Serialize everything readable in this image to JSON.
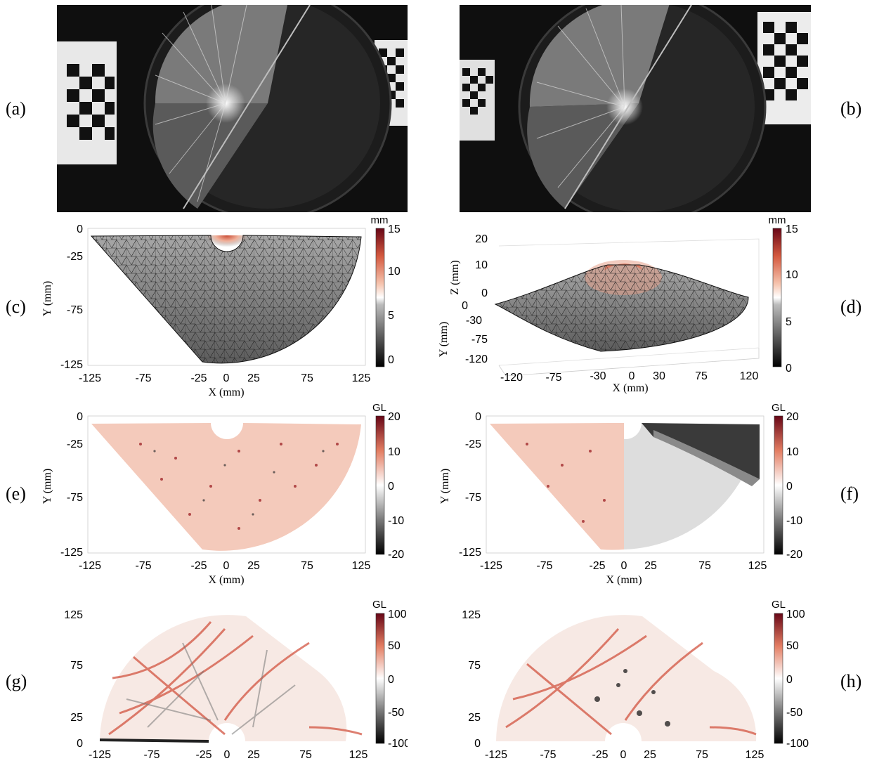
{
  "panel_labels": [
    "(a)",
    "(b)",
    "(c)",
    "(d)",
    "(e)",
    "(f)",
    "(g)",
    "(h)"
  ],
  "colors": {
    "dark": "#1a1a1a",
    "mid": "#ffffff",
    "red": "#8b0a1a",
    "orange": "#e8826a"
  },
  "photos": [
    {
      "id": "a",
      "description_icons": [
        "glass-plate-icon",
        "calibration-target-icon"
      ]
    },
    {
      "id": "b",
      "description_icons": [
        "glass-plate-icon",
        "calibration-target-icon"
      ]
    }
  ],
  "chart_data": [
    {
      "id": "c",
      "type": "heatmap",
      "xlabel": "X (mm)",
      "ylabel": "Y (mm)",
      "xticks": [
        "-125",
        "-75",
        "-25",
        "0",
        "25",
        "75",
        "125"
      ],
      "yticks": [
        "0",
        "-25",
        "-75",
        "-125"
      ],
      "colorbar": {
        "unit": "mm",
        "ticks": [
          "15",
          "10",
          "5",
          "0"
        ],
        "range": [
          -1,
          15
        ]
      }
    },
    {
      "id": "d",
      "type": "heatmap",
      "xlabel": "X (mm)",
      "ylabel": "Y (mm)",
      "zlabel": "Z (mm)",
      "xticks": [
        "-120",
        "-75",
        "-30",
        "0",
        "30",
        "75",
        "120"
      ],
      "yticks": [
        "0",
        "-30",
        "-75",
        "-120"
      ],
      "zticks": [
        "20",
        "10",
        "0"
      ],
      "colorbar": {
        "unit": "mm",
        "ticks": [
          "15",
          "10",
          "5",
          "0"
        ],
        "range": [
          -1,
          15
        ]
      }
    },
    {
      "id": "e",
      "type": "heatmap",
      "xlabel": "X (mm)",
      "ylabel": "Y (mm)",
      "xticks": [
        "-125",
        "-75",
        "-25",
        "0",
        "25",
        "75",
        "125"
      ],
      "yticks": [
        "0",
        "-25",
        "-75",
        "-125"
      ],
      "colorbar": {
        "unit": "GL",
        "ticks": [
          "20",
          "10",
          "0",
          "-10",
          "-20"
        ],
        "range": [
          -20,
          20
        ]
      }
    },
    {
      "id": "f",
      "type": "heatmap",
      "xlabel": "X (mm)",
      "ylabel": "Y (mm)",
      "xticks": [
        "-125",
        "-75",
        "-25",
        "0",
        "25",
        "75",
        "125"
      ],
      "yticks": [
        "0",
        "-25",
        "-75",
        "-125"
      ],
      "colorbar": {
        "unit": "GL",
        "ticks": [
          "20",
          "10",
          "0",
          "-10",
          "-20"
        ],
        "range": [
          -20,
          20
        ]
      }
    },
    {
      "id": "g",
      "type": "heatmap",
      "xticks": [
        "-125",
        "-75",
        "-25",
        "0",
        "25",
        "75",
        "125"
      ],
      "yticks": [
        "125",
        "75",
        "25",
        "0"
      ],
      "colorbar": {
        "unit": "GL",
        "ticks": [
          "100",
          "50",
          "0",
          "-50",
          "-100"
        ],
        "range": [
          -100,
          100
        ]
      }
    },
    {
      "id": "h",
      "type": "heatmap",
      "xticks": [
        "-125",
        "-75",
        "-25",
        "0",
        "25",
        "75",
        "125"
      ],
      "yticks": [
        "125",
        "75",
        "25",
        "0"
      ],
      "colorbar": {
        "unit": "GL",
        "ticks": [
          "100",
          "50",
          "0",
          "-50",
          "-100"
        ],
        "range": [
          -100,
          100
        ]
      }
    }
  ]
}
